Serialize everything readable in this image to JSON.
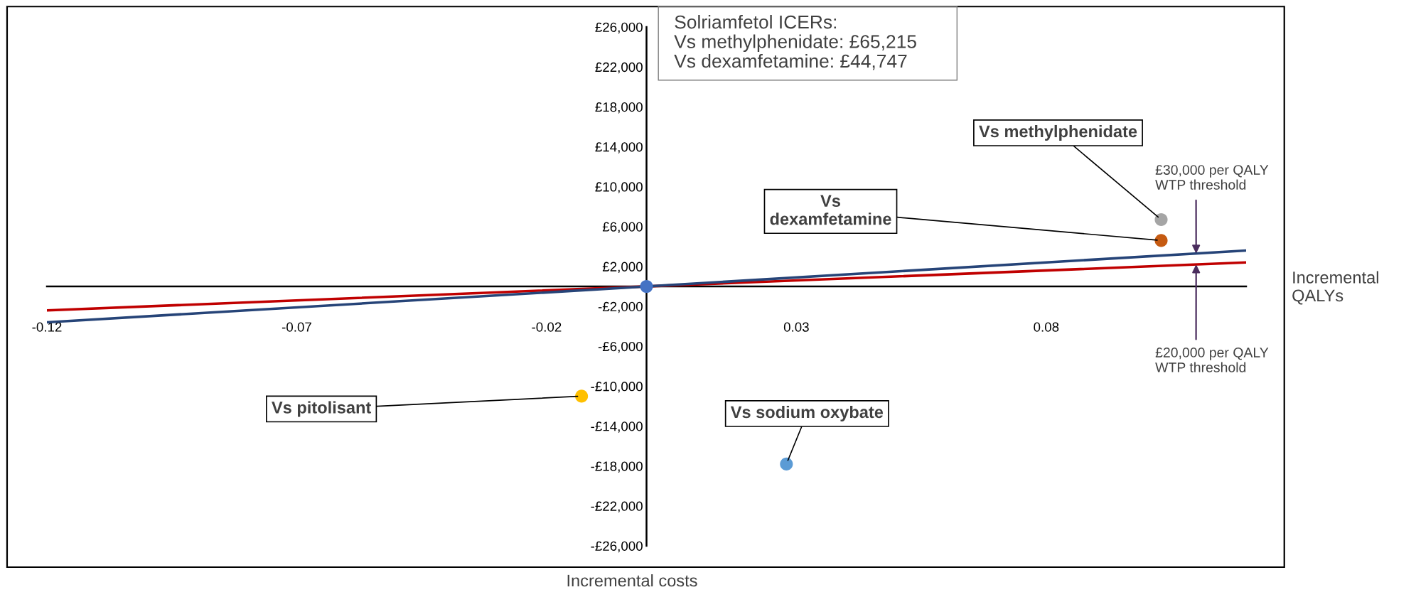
{
  "chart_data": {
    "type": "scatter",
    "xlabel": "Incremental\nQALYs",
    "xlim": [
      -0.12,
      0.12
    ],
    "xticks": [
      -0.12,
      -0.07,
      -0.02,
      0.03,
      0.08
    ],
    "ylim": [
      -26000,
      26000
    ],
    "yticks": [
      {
        "value": -26000,
        "label": "-£26,000"
      },
      {
        "value": -22000,
        "label": "-£22,000"
      },
      {
        "value": -18000,
        "label": "-£18,000"
      },
      {
        "value": -14000,
        "label": "-£14,000"
      },
      {
        "value": -10000,
        "label": "-£10,000"
      },
      {
        "value": -6000,
        "label": "-£6,000"
      },
      {
        "value": -2000,
        "label": "-£2,000"
      },
      {
        "value": 2000,
        "label": "£2,000"
      },
      {
        "value": 6000,
        "label": "£6,000"
      },
      {
        "value": 10000,
        "label": "£10,000"
      },
      {
        "value": 14000,
        "label": "£14,000"
      },
      {
        "value": 18000,
        "label": "£18,000"
      },
      {
        "value": 22000,
        "label": "£22,000"
      },
      {
        "value": 26000,
        "label": "£26,000"
      }
    ],
    "grid": false,
    "legend": false,
    "series": [
      {
        "type": "line",
        "color": "#c00000",
        "x": [
          -0.12,
          0.12
        ],
        "values": [
          -2400,
          2400
        ],
        "marker": "none",
        "line_style": "solid"
      },
      {
        "type": "line",
        "color": "#264478",
        "x": [
          -0.12,
          0.12
        ],
        "values": [
          -3600,
          3600
        ],
        "marker": "none",
        "line_style": "solid"
      },
      {
        "marker": "circle",
        "x": [
          0,
          0.103,
          0.103,
          -0.013,
          0.028
        ],
        "values": [
          0,
          6700,
          4600,
          -11000,
          -17800
        ],
        "colors": [
          "#4472c4",
          "#a5a5a5",
          "#c55a11",
          "#ffc000",
          "#5b9bd5"
        ]
      }
    ],
    "annotations": [
      "Solriamfetol ICERs:\nVs methylphenidate: £65,215\nVs dexamfetamine: £44,747",
      "Incremental costs",
      {
        "text": "Vs methylphenidate",
        "x": 0.103,
        "y": 6700
      },
      {
        "text": "Vs\ndexamfetamine",
        "x": 0.103,
        "y": 4600
      },
      {
        "text": "Vs pitolisant",
        "x": -0.013,
        "y": -11000
      },
      {
        "text": "Vs sodium oxybate",
        "x": 0.028,
        "y": -17800
      },
      {
        "text": "£30,000 per QALY\nWTP threshold",
        "x": 0.11,
        "y": 3300
      },
      {
        "text": "£20,000 per QALY\nWTP threshold",
        "x": 0.11,
        "y": 2200
      }
    ]
  }
}
